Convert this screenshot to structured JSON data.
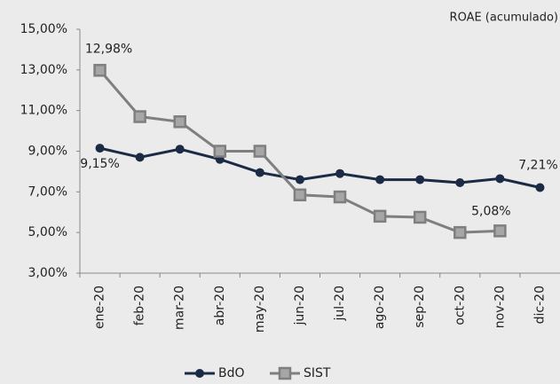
{
  "chart_data": {
    "type": "line",
    "annotation": "ROAE (acumulado)",
    "categories": [
      "ene-20",
      "feb-20",
      "mar-20",
      "abr-20",
      "may-20",
      "jun-20",
      "jul-20",
      "ago-20",
      "sep-20",
      "oct-20",
      "nov-20",
      "dic-20"
    ],
    "series": [
      {
        "name": "BdO",
        "color": "#1b2b45",
        "marker": "circle",
        "values": [
          9.15,
          8.7,
          9.1,
          8.6,
          7.95,
          7.6,
          7.9,
          7.6,
          7.6,
          7.45,
          7.65,
          7.21
        ],
        "value_labels": [
          "9,15%",
          null,
          null,
          null,
          null,
          null,
          null,
          null,
          null,
          null,
          null,
          "7,21%"
        ]
      },
      {
        "name": "SIST",
        "color": "#7f7f7f",
        "marker": "square",
        "values": [
          12.98,
          10.7,
          10.45,
          9.0,
          9.0,
          6.85,
          6.75,
          5.8,
          5.75,
          5.0,
          5.08,
          null
        ],
        "value_labels": [
          "12,98%",
          null,
          null,
          null,
          null,
          null,
          null,
          null,
          null,
          null,
          "5,08%",
          null
        ]
      }
    ],
    "ylim": [
      3,
      15
    ],
    "yticks": [
      {
        "value": 3,
        "label": "3,00%"
      },
      {
        "value": 5,
        "label": "5,00%"
      },
      {
        "value": 7,
        "label": "7,00%"
      },
      {
        "value": 9,
        "label": "9,00%"
      },
      {
        "value": 11,
        "label": "11,00%"
      },
      {
        "value": 13,
        "label": "13,00%"
      },
      {
        "value": 15,
        "label": "15,00%"
      }
    ],
    "legend": "bottom"
  }
}
